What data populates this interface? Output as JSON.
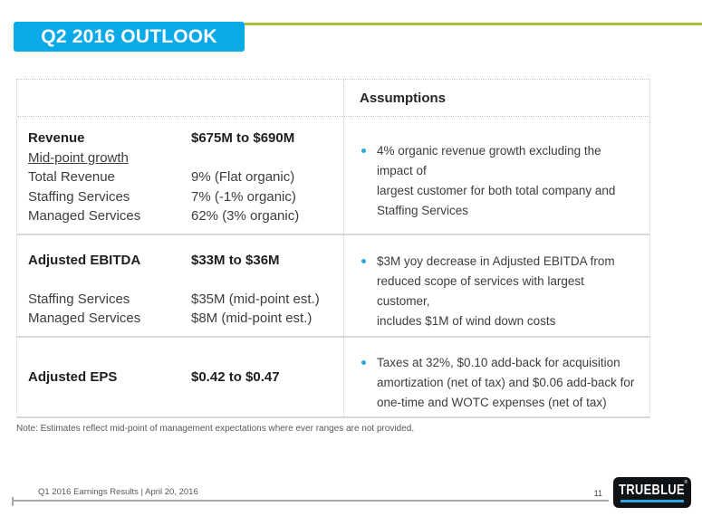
{
  "slide_title": "Q2 2016 OUTLOOK",
  "colors": {
    "accent_blue": "#0AA9E8",
    "accent_green": "#A9BE38",
    "bullet_blue": "#29A9E2",
    "logo_black": "#101315"
  },
  "table": {
    "header": {
      "assumptions": "Assumptions"
    },
    "sections": [
      {
        "rows": [
          {
            "label": "Revenue",
            "value": "$675M to $690M"
          },
          {
            "label": "Mid-point growth",
            "value": ""
          },
          {
            "label": "Total Revenue",
            "value": "9% (Flat organic)"
          },
          {
            "label": "Staffing Services",
            "value": "7% (-1% organic)"
          },
          {
            "label": "Managed Services",
            "value": "62% (3% organic)"
          }
        ],
        "assumption": "4% organic revenue growth excluding the impact of\nlargest customer for both total company and\nStaffing Services"
      },
      {
        "rows": [
          {
            "label": "Adjusted EBITDA",
            "value": "$33M to $36M"
          },
          {
            "label": "Staffing Services",
            "value": "$35M (mid-point est.)"
          },
          {
            "label": "Managed Services",
            "value": "$8M (mid-point est.)"
          }
        ],
        "assumption": "$3M yoy decrease in Adjusted EBITDA from\nreduced scope of services with largest customer,\nincludes $1M of wind down costs"
      },
      {
        "rows": [
          {
            "label": "Adjusted EPS",
            "value": "$0.42 to $0.47"
          }
        ],
        "assumption": "Taxes at 32%, $0.10 add-back for acquisition\namortization (net of tax) and $0.06 add-back for\none-time and WOTC expenses (net of tax)"
      }
    ]
  },
  "note": "Note: Estimates reflect mid-point of management expectations where ever ranges are not provided.",
  "footer": {
    "left_text": "Q1 2016 Earnings Results | April 20, 2016",
    "page_number": "11",
    "logo_text": "TRUEBLUE",
    "logo_registered": "®"
  }
}
